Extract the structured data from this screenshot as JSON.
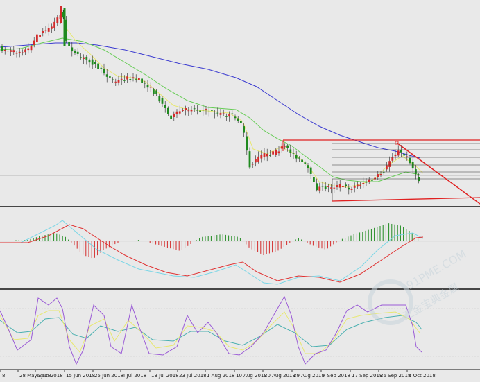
{
  "chart_data": {
    "type": "candlestick",
    "x_ticks": [
      "8",
      "28 May 2018",
      "6 Jun 2018",
      "15 Jun 2018",
      "25 Jun 2018",
      "4 Jul 2018",
      "13 Jul 2018",
      "23 Jul 2018",
      "1 Aug 2018",
      "10 Aug 2018",
      "20 Aug 2018",
      "29 Aug 2018",
      "7 Sep 2018",
      "17 Sep 2018",
      "26 Sep 2018",
      "5 Oct 2018"
    ],
    "panels": [
      "price",
      "macd",
      "stochastic"
    ],
    "price_trendlines": "descending channel with horizontal support and resistance levels",
    "colors": {
      "background": "#e9e9e9",
      "bull_candle": "#d42a2a",
      "bear_candle": "#1f8a1f",
      "ma_fast": "#e8e870",
      "ma_mid": "#66cc55",
      "ma_slow": "#3a3ad0",
      "trendline": "#e02020",
      "fib_lines": "#333333",
      "macd_line": "#7ad6e6",
      "signal_line": "#e03030",
      "stoch_k": "#9a5ad6",
      "stoch_d": "#e8e870",
      "stoch_slow": "#4ab0b0",
      "separator": "#111111",
      "watermark": "#c8d4dc"
    }
  },
  "watermark": {
    "brand": "91PME.COM",
    "cn": "汇金宝典金属"
  }
}
